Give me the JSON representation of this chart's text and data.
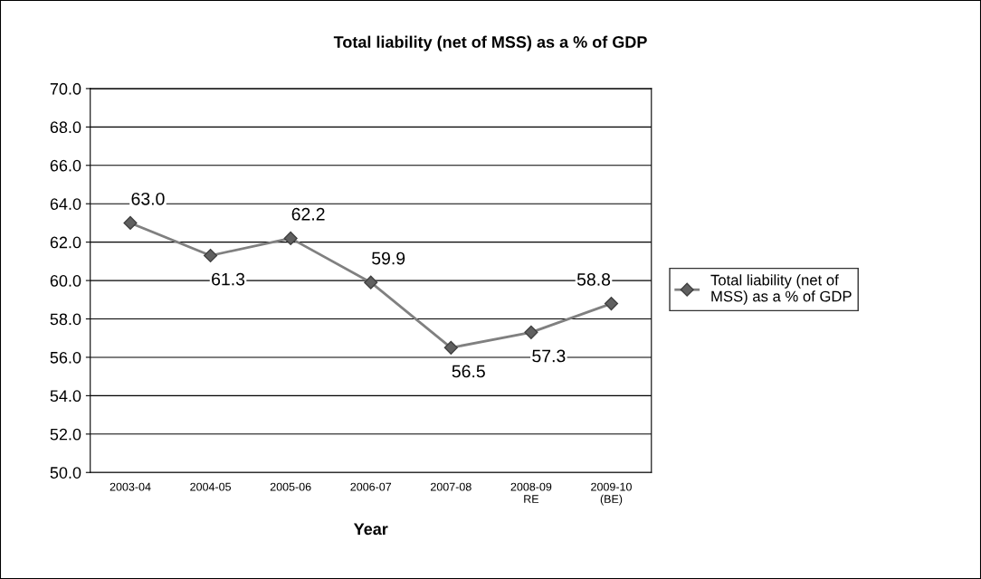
{
  "chart_data": {
    "type": "line",
    "title": "Total liability (net of MSS) as a % of GDP",
    "xlabel": "Year",
    "categories": [
      "2003-04",
      "2004-05",
      "2005-06",
      "2006-07",
      "2007-08",
      "2008-09\nRE",
      "2009-10\n(BE)"
    ],
    "series": [
      {
        "name": "Total liability (net of\nMSS) as a % of GDP",
        "color": "#808080",
        "values": [
          63.0,
          61.3,
          62.2,
          59.9,
          56.5,
          57.3,
          58.8
        ],
        "value_labels": [
          "63.0",
          "61.3",
          "62.2",
          "59.9",
          "56.5",
          "57.3",
          "58.8"
        ]
      }
    ],
    "ylim": [
      50,
      70
    ],
    "yticks": [
      {
        "value": 50,
        "label": "50.0"
      },
      {
        "value": 52,
        "label": "52.0"
      },
      {
        "value": 54,
        "label": "54.0"
      },
      {
        "value": 56,
        "label": "56.0"
      },
      {
        "value": 58,
        "label": "58.0"
      },
      {
        "value": 60,
        "label": "60.0"
      },
      {
        "value": 62,
        "label": "62.0"
      },
      {
        "value": 64,
        "label": "64.0"
      },
      {
        "value": 66,
        "label": "66.0"
      },
      {
        "value": 68,
        "label": "68.0"
      },
      {
        "value": 70,
        "label": "70.0"
      }
    ],
    "grid": "y",
    "legend": "right",
    "marker": "diamond",
    "line_style": "solid"
  }
}
